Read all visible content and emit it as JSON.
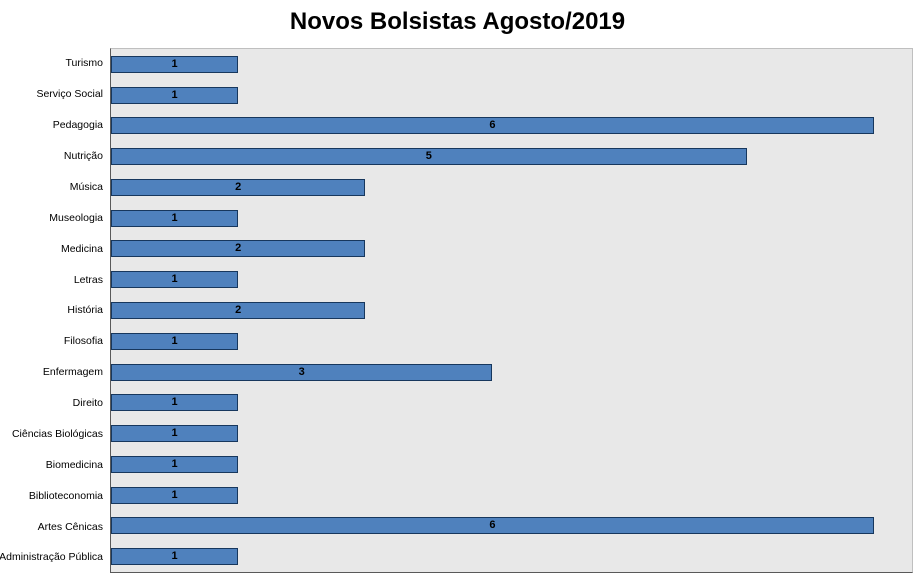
{
  "chart_data": {
    "type": "bar",
    "orientation": "horizontal",
    "title": "Novos Bolsistas Agosto/2019",
    "category_order": "top-to-bottom",
    "categories": [
      "Turismo",
      "Serviço Social",
      "Pedagogia",
      "Nutrição",
      "Música",
      "Museologia",
      "Medicina",
      "Letras",
      "História",
      "Filosofia",
      "Enfermagem",
      "Direito",
      "Ciências Biológicas",
      "Biomedicina",
      "Biblioteconomia",
      "Artes Cênicas",
      "Administração Pública"
    ],
    "values": [
      1,
      1,
      6,
      5,
      2,
      1,
      2,
      1,
      2,
      1,
      3,
      1,
      1,
      1,
      1,
      6,
      1
    ],
    "data_labels_shown": true,
    "xlim": [
      0,
      6.3
    ],
    "grid": false,
    "legend": "none",
    "colors": {
      "bar_fill": "#4F81BD",
      "bar_border": "#17375D",
      "plot_background": "#E8E8E8",
      "plot_border": "#BFBFBF",
      "axis_line": "#595959",
      "title_color": "#000000",
      "label_color": "#000000"
    }
  }
}
